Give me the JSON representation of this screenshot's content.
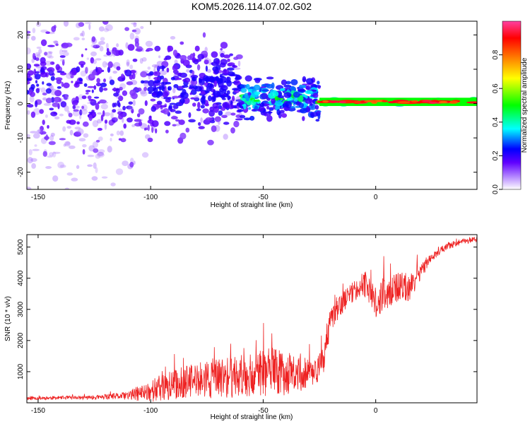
{
  "figure_title": "KOM5.2026.114.07.02.G02",
  "chart_data": [
    {
      "type": "heatmap",
      "xlabel": "Height of straight line (km)",
      "ylabel": "Frequency (Hz)",
      "xlim": [
        -155,
        45
      ],
      "ylim": [
        -25,
        24
      ],
      "x_ticks": [
        -150,
        -100,
        -50,
        0
      ],
      "x_tick_labels": [
        "-150",
        "-100",
        "-50",
        "0"
      ],
      "y_ticks": [
        -20,
        -10,
        0,
        10,
        20
      ],
      "y_tick_labels": [
        "-20",
        "-10",
        "0",
        "10",
        "20"
      ],
      "colorbar": {
        "label": "Normalized spectral amplitude",
        "range": [
          0,
          1
        ],
        "ticks": [
          0.0,
          0.2,
          0.4,
          0.6,
          0.8
        ],
        "tick_labels": [
          "0.0",
          "0.2",
          "0.4",
          "0.6",
          "0.8"
        ]
      },
      "ridge": {
        "description_x_segments": [
          {
            "x": [
              -155,
              -100
            ],
            "center_hz": 5,
            "spread_hz": 20,
            "amplitude": 0.2
          },
          {
            "x": [
              -100,
              -60
            ],
            "center_hz": 4,
            "spread_hz": 9,
            "amplitude": 0.3
          },
          {
            "x": [
              -60,
              -25
            ],
            "center_hz": 1.5,
            "spread_hz": 4,
            "amplitude": 0.45
          },
          {
            "x": [
              -25,
              45
            ],
            "center_hz": 0.5,
            "spread_hz": 0.6,
            "amplitude": 0.9
          }
        ]
      }
    },
    {
      "type": "line",
      "xlabel": "Height of straight line (km)",
      "ylabel": "SNR (10 * v/v)",
      "xlim": [
        -155,
        45
      ],
      "ylim": [
        0,
        5400
      ],
      "x_ticks": [
        -150,
        -100,
        -50,
        0
      ],
      "x_tick_labels": [
        "-150",
        "-100",
        "-50",
        "0"
      ],
      "y_ticks": [
        1000,
        2000,
        3000,
        4000,
        5000
      ],
      "y_tick_labels": [
        "1000",
        "2000",
        "3000",
        "4000",
        "5000"
      ],
      "color": "#ee2222",
      "series": [
        {
          "name": "SNR",
          "x": [
            -155,
            -140,
            -125,
            -112,
            -105,
            -95,
            -85,
            -75,
            -65,
            -55,
            -45,
            -35,
            -28,
            -23,
            -20,
            -15,
            -10,
            -5,
            0,
            5,
            10,
            15,
            20,
            25,
            30,
            35,
            40,
            45
          ],
          "y": [
            150,
            160,
            170,
            220,
            300,
            480,
            650,
            750,
            800,
            900,
            1000,
            900,
            1000,
            1300,
            2700,
            3200,
            3600,
            3800,
            3200,
            3500,
            3700,
            3700,
            4200,
            4700,
            4950,
            5100,
            5200,
            5250
          ],
          "noise": [
            60,
            60,
            70,
            120,
            250,
            450,
            550,
            600,
            650,
            700,
            800,
            600,
            500,
            500,
            400,
            350,
            350,
            400,
            500,
            550,
            500,
            450,
            250,
            150,
            120,
            100,
            100,
            100
          ]
        }
      ]
    }
  ]
}
